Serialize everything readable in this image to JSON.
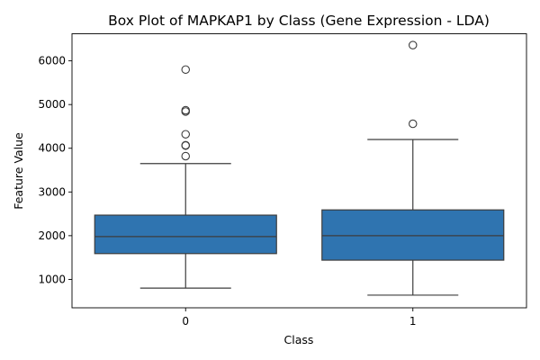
{
  "chart_data": {
    "type": "boxplot",
    "title": "Box Plot of MAPKAP1 by Class (Gene Expression - LDA)",
    "xlabel": "Class",
    "ylabel": "Feature Value",
    "categories": [
      "0",
      "1"
    ],
    "ylim": [
      350,
      6620
    ],
    "yticks": [
      1000,
      2000,
      3000,
      4000,
      5000,
      6000
    ],
    "box_color": "#2f74b0",
    "line_color": "#3d3d3d",
    "boxes": [
      {
        "category": "0",
        "whisker_low": 800,
        "q1": 1590,
        "median": 1980,
        "q3": 2470,
        "whisker_high": 3650,
        "outliers": [
          3820,
          4060,
          4070,
          4320,
          4840,
          4870,
          5800
        ]
      },
      {
        "category": "1",
        "whisker_low": 640,
        "q1": 1440,
        "median": 2000,
        "q3": 2590,
        "whisker_high": 4200,
        "outliers": [
          4560,
          6360
        ]
      }
    ]
  }
}
